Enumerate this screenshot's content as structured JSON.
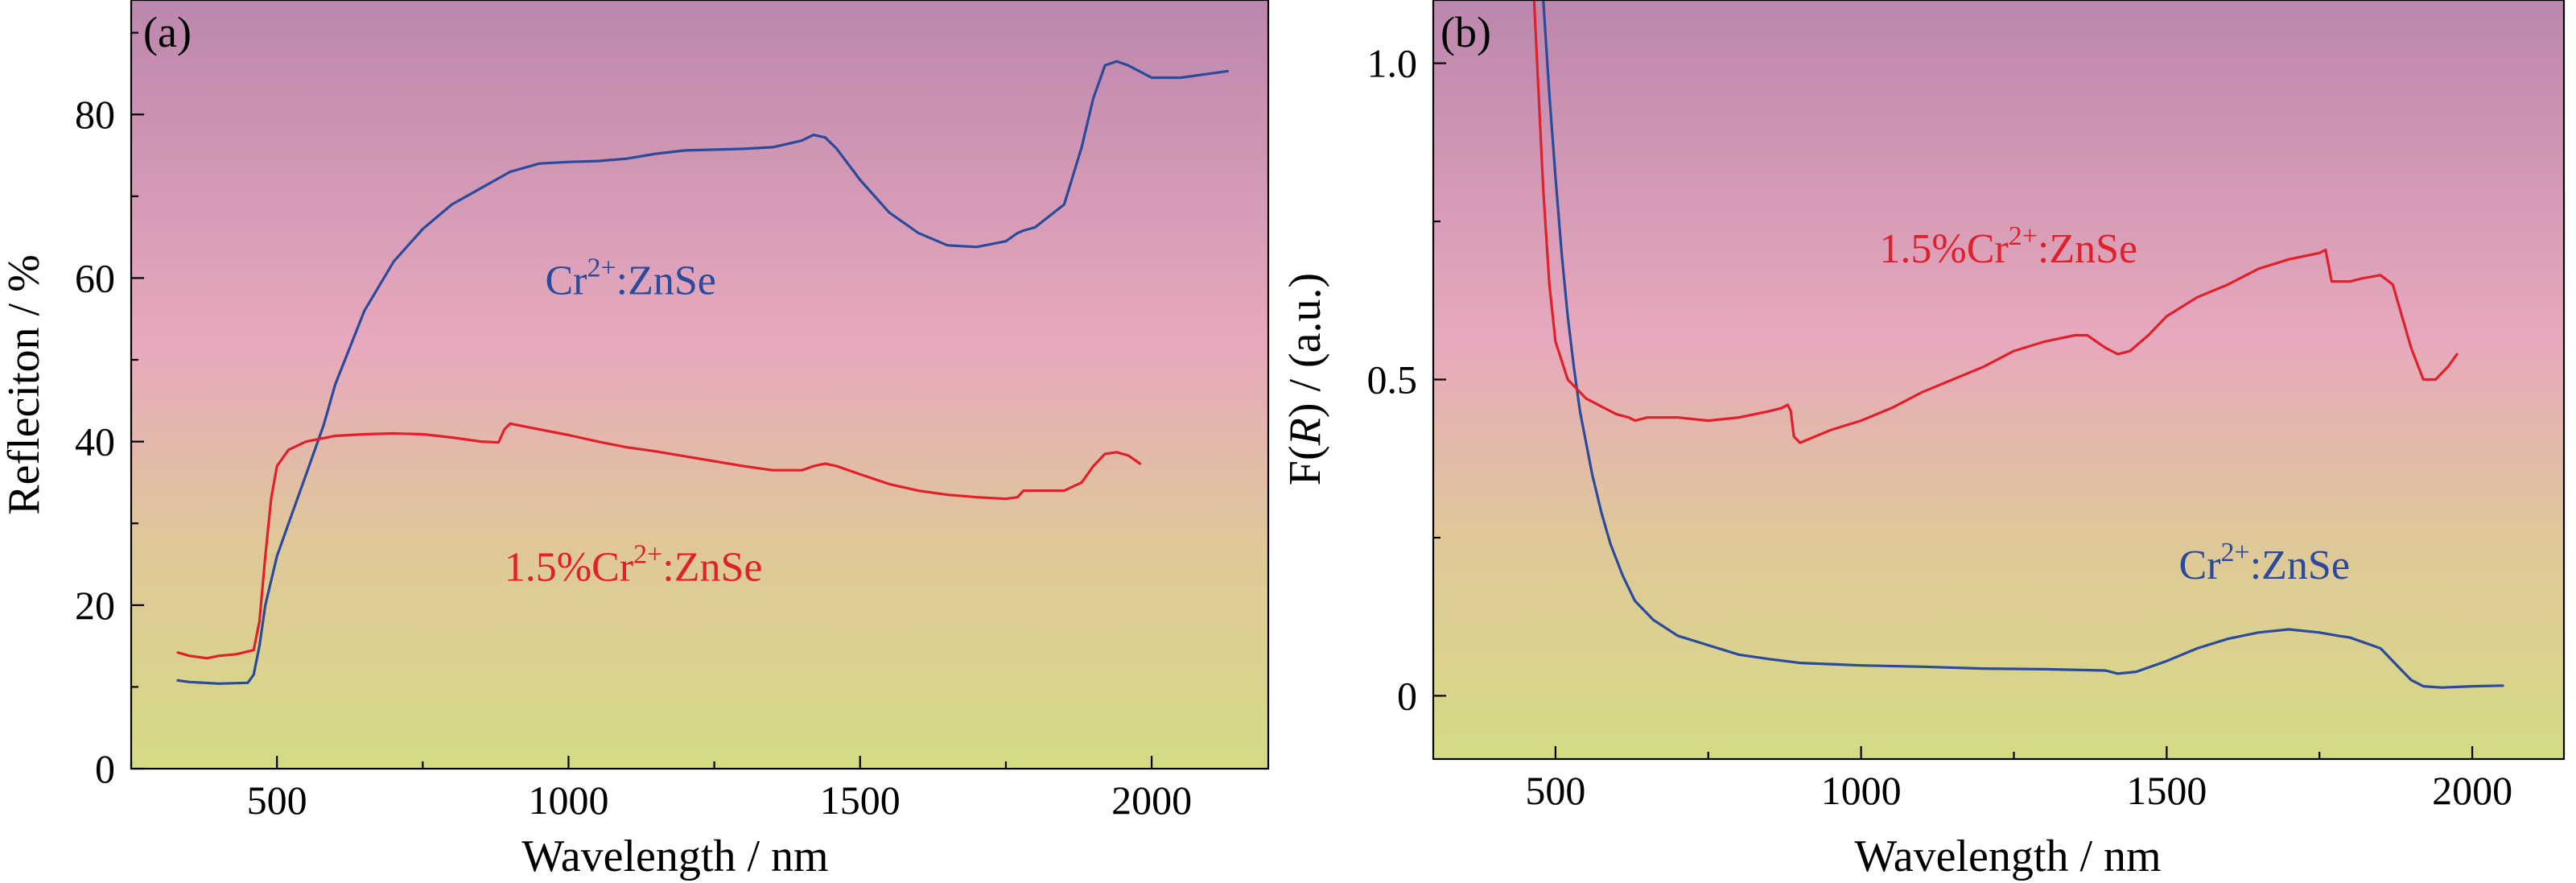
{
  "chart_data": [
    {
      "panel_label": "(a)",
      "type": "line",
      "xlabel": "Wavelength / nm",
      "ylabel": "Refleciton / %",
      "xlim": [
        250,
        2200
      ],
      "ylim": [
        0,
        94
      ],
      "xticks": [
        500,
        1000,
        1500,
        2000
      ],
      "yticks": [
        0,
        20,
        40,
        60,
        80
      ],
      "grid": false,
      "background_gradient": [
        "#bc87ad",
        "#e7a9bd",
        "#e0c79a",
        "#d5db84"
      ],
      "series": [
        {
          "name": "Cr2+:ZnSe",
          "color": "#2a4a9c",
          "x": [
            330,
            350,
            400,
            450,
            460,
            470,
            480,
            500,
            520,
            550,
            580,
            600,
            650,
            700,
            750,
            800,
            850,
            900,
            950,
            1000,
            1050,
            1100,
            1150,
            1200,
            1250,
            1300,
            1350,
            1400,
            1420,
            1440,
            1460,
            1500,
            1550,
            1600,
            1650,
            1700,
            1750,
            1770,
            1780,
            1800,
            1850,
            1880,
            1900,
            1920,
            1940,
            1960,
            2000,
            2050,
            2100,
            2130
          ],
          "values": [
            10.8,
            10.6,
            10.4,
            10.5,
            11.5,
            15,
            20,
            26,
            30,
            36,
            42,
            47,
            56,
            62,
            66,
            69,
            71,
            73,
            74,
            74.2,
            74.3,
            74.6,
            75.2,
            75.6,
            75.7,
            75.8,
            76,
            76.8,
            77.5,
            77.2,
            75.8,
            72,
            68,
            65.5,
            64,
            63.8,
            64.5,
            65.5,
            65.8,
            66.2,
            69,
            76,
            82,
            86,
            86.5,
            86,
            84.5,
            84.5,
            85,
            85.3
          ]
        },
        {
          "name": "1.5%Cr2+:ZnSe",
          "color": "#e0202a",
          "x": [
            330,
            350,
            380,
            400,
            430,
            460,
            470,
            480,
            490,
            500,
            520,
            550,
            600,
            650,
            700,
            750,
            800,
            850,
            880,
            890,
            900,
            950,
            1000,
            1050,
            1100,
            1150,
            1200,
            1250,
            1300,
            1350,
            1400,
            1420,
            1440,
            1460,
            1500,
            1550,
            1600,
            1650,
            1700,
            1750,
            1770,
            1780,
            1800,
            1850,
            1880,
            1900,
            1920,
            1940,
            1960,
            1980
          ],
          "values": [
            14.2,
            13.8,
            13.5,
            13.8,
            14,
            14.5,
            18,
            26,
            33,
            37,
            39,
            40,
            40.7,
            40.9,
            41,
            40.9,
            40.5,
            40,
            39.9,
            41.5,
            42.2,
            41.5,
            40.8,
            40,
            39.3,
            38.8,
            38.2,
            37.6,
            37,
            36.5,
            36.5,
            37,
            37.3,
            37,
            36,
            34.8,
            34,
            33.5,
            33.2,
            33,
            33.2,
            34,
            34,
            34,
            35,
            37,
            38.5,
            38.7,
            38.3,
            37.3
          ]
        }
      ],
      "annotations": [
        {
          "base": "Cr",
          "sup": "2+",
          "tail": ":ZnSe",
          "color": "#2a4a9c",
          "x": 960,
          "y": 58
        },
        {
          "base": "1.5%Cr",
          "sup": "2+",
          "tail": ":ZnSe",
          "color": "#e0202a",
          "x": 890,
          "y": 23
        }
      ]
    },
    {
      "panel_label": "(b)",
      "type": "line",
      "xlabel": "Wavelength / nm",
      "ylabel": "F(R) / (a.u.)",
      "ylabel_parts": [
        "F(",
        "R",
        ") / (a.u.)"
      ],
      "xlim": [
        300,
        2150
      ],
      "ylim": [
        -0.1,
        1.1
      ],
      "xticks": [
        500,
        1000,
        1500,
        2000
      ],
      "yticks": [
        0,
        0.5,
        1.0
      ],
      "ytick_labels": [
        "0",
        "0.5",
        "1.0"
      ],
      "grid": false,
      "background_gradient": [
        "#bc87ad",
        "#e7a9bd",
        "#e0c79a",
        "#d5db84"
      ],
      "series": [
        {
          "name": "Cr2+:ZnSe",
          "color": "#2a4a9c",
          "x": [
            480,
            490,
            500,
            510,
            520,
            530,
            540,
            550,
            560,
            575,
            590,
            610,
            630,
            660,
            700,
            750,
            800,
            850,
            900,
            950,
            1000,
            1100,
            1200,
            1300,
            1400,
            1420,
            1450,
            1500,
            1550,
            1600,
            1650,
            1700,
            1750,
            1780,
            1800,
            1850,
            1880,
            1900,
            1920,
            1950,
            2000,
            2050
          ],
          "values": [
            1.1,
            0.95,
            0.82,
            0.7,
            0.6,
            0.52,
            0.45,
            0.4,
            0.35,
            0.29,
            0.24,
            0.19,
            0.15,
            0.12,
            0.095,
            0.08,
            0.065,
            0.058,
            0.052,
            0.05,
            0.048,
            0.046,
            0.043,
            0.042,
            0.04,
            0.035,
            0.038,
            0.055,
            0.075,
            0.09,
            0.1,
            0.105,
            0.1,
            0.095,
            0.092,
            0.075,
            0.045,
            0.025,
            0.015,
            0.013,
            0.015,
            0.016
          ]
        },
        {
          "name": "1.5%Cr2+:ZnSe",
          "color": "#e0202a",
          "x": [
            465,
            470,
            475,
            480,
            490,
            500,
            520,
            550,
            580,
            600,
            620,
            630,
            650,
            700,
            750,
            800,
            850,
            870,
            880,
            885,
            890,
            900,
            950,
            1000,
            1050,
            1100,
            1150,
            1200,
            1250,
            1300,
            1350,
            1370,
            1400,
            1420,
            1440,
            1470,
            1500,
            1550,
            1600,
            1650,
            1700,
            1750,
            1760,
            1770,
            1800,
            1820,
            1850,
            1870,
            1900,
            1920,
            1940,
            1960,
            1975
          ],
          "values": [
            1.1,
            1.0,
            0.9,
            0.8,
            0.65,
            0.56,
            0.5,
            0.47,
            0.455,
            0.445,
            0.44,
            0.435,
            0.44,
            0.44,
            0.435,
            0.44,
            0.45,
            0.455,
            0.46,
            0.45,
            0.41,
            0.4,
            0.42,
            0.435,
            0.455,
            0.48,
            0.5,
            0.52,
            0.545,
            0.56,
            0.57,
            0.57,
            0.55,
            0.54,
            0.545,
            0.57,
            0.6,
            0.63,
            0.65,
            0.675,
            0.69,
            0.7,
            0.705,
            0.655,
            0.655,
            0.66,
            0.665,
            0.65,
            0.55,
            0.5,
            0.5,
            0.52,
            0.54
          ]
        }
      ],
      "annotations": [
        {
          "base": "1.5%Cr",
          "sup": "2+",
          "tail": ":ZnSe",
          "color": "#e0202a",
          "x": 1030,
          "y": 0.685
        },
        {
          "base": "Cr",
          "sup": "2+",
          "tail": ":ZnSe",
          "color": "#2a4a9c",
          "x": 1520,
          "y": 0.185
        }
      ]
    }
  ]
}
